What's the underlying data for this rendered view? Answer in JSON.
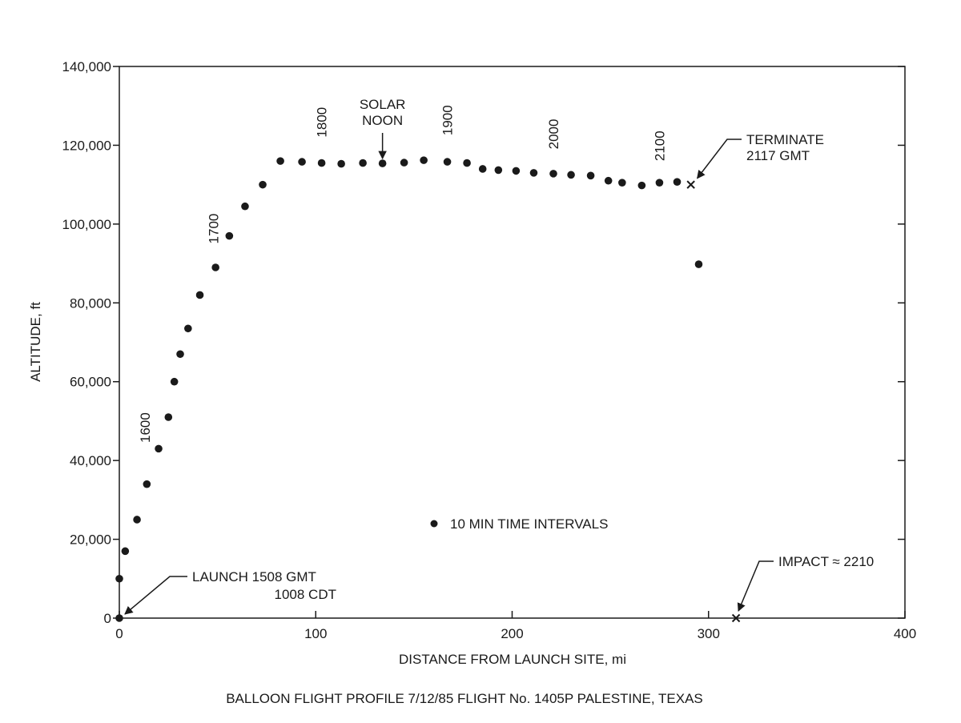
{
  "chart_data": {
    "type": "scatter",
    "title": "BALLOON FLIGHT PROFILE 7/12/85 FLIGHT No. 1405P PALESTINE, TEXAS",
    "xlabel": "DISTANCE FROM LAUNCH SITE, mi",
    "ylabel": "ALTITUDE, ft",
    "xlim": [
      0,
      400
    ],
    "ylim": [
      0,
      140000
    ],
    "x_ticks": [
      0,
      100,
      200,
      300,
      400
    ],
    "x_tick_labels": [
      "0",
      "100",
      "200",
      "300",
      "400"
    ],
    "y_ticks": [
      0,
      20000,
      40000,
      60000,
      80000,
      100000,
      120000,
      140000
    ],
    "y_tick_labels": [
      "0",
      "20,000",
      "40,000",
      "60,000",
      "80,000",
      "100,000",
      "120,000",
      "140,000"
    ],
    "grid": false,
    "legend": {
      "label": "10 MIN TIME INTERVALS",
      "placement": "center"
    },
    "series": [
      {
        "marker": "dot",
        "points": [
          [
            0,
            0
          ],
          [
            0,
            10000
          ],
          [
            3,
            17000
          ],
          [
            9,
            25000
          ],
          [
            14,
            34000
          ],
          [
            20,
            43000
          ],
          [
            25,
            51000
          ],
          [
            28,
            60000
          ],
          [
            31,
            67000
          ],
          [
            35,
            73500
          ],
          [
            41,
            82000
          ],
          [
            49,
            89000
          ],
          [
            56,
            97000
          ],
          [
            64,
            104500
          ],
          [
            73,
            110000
          ],
          [
            82,
            116000
          ],
          [
            93,
            115800
          ],
          [
            103,
            115500
          ],
          [
            113,
            115300
          ],
          [
            124,
            115500
          ],
          [
            134,
            115400
          ],
          [
            145,
            115600
          ],
          [
            155,
            116200
          ],
          [
            167,
            115800
          ],
          [
            177,
            115500
          ],
          [
            185,
            114000
          ],
          [
            193,
            113700
          ],
          [
            202,
            113500
          ],
          [
            211,
            113000
          ],
          [
            221,
            112800
          ],
          [
            230,
            112500
          ],
          [
            240,
            112300
          ],
          [
            249,
            111000
          ],
          [
            256,
            110500
          ],
          [
            266,
            109800
          ],
          [
            275,
            110500
          ],
          [
            284,
            110700
          ],
          [
            295,
            89800
          ]
        ]
      },
      {
        "marker": "x",
        "points": [
          [
            291,
            110000
          ],
          [
            314,
            0
          ]
        ]
      }
    ],
    "time_labels": [
      {
        "text": "1600",
        "x": 13,
        "y": 44500
      },
      {
        "text": "1700",
        "x": 48,
        "y": 95000
      },
      {
        "text": "1800",
        "x": 103,
        "y": 122000
      },
      {
        "text": "1900",
        "x": 167,
        "y": 122500
      },
      {
        "text": "2000",
        "x": 221,
        "y": 119000
      },
      {
        "text": "2100",
        "x": 275,
        "y": 116000
      }
    ],
    "annotations": {
      "solar_noon": {
        "lines": [
          "SOLAR",
          "NOON"
        ],
        "x": 134,
        "y": 115400
      },
      "terminate": {
        "lines": [
          "TERMINATE",
          "2117 GMT"
        ],
        "x": 291,
        "y": 110000
      },
      "launch": {
        "lines": [
          "LAUNCH 1508 GMT",
          "1008 CDT"
        ],
        "x": 0,
        "y": 0
      },
      "impact": {
        "lines": [
          "IMPACT ≈ 2210"
        ],
        "x": 314,
        "y": 0
      }
    },
    "colors": {
      "ink": "#1a1a1a",
      "background": "#ffffff"
    }
  }
}
